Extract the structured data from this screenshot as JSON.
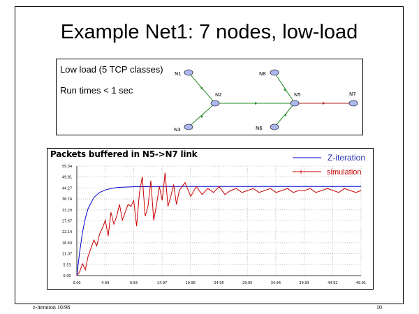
{
  "slide": {
    "title": "Example Net1: 7 nodes, low-load",
    "footer_left": "z-iteration 10/98",
    "page_number": "10"
  },
  "network": {
    "description_line1": "Low load (5 TCP classes)",
    "description_line2": "Run times < 1 sec",
    "nodes": [
      "N1",
      "N2",
      "N3",
      "N5",
      "N6",
      "N7",
      "N8"
    ]
  },
  "chart_data": {
    "type": "line",
    "title": "Packets buffered in N5->N7 link",
    "y_tick_labels": [
      "0.00",
      "5.53",
      "11.07",
      "16.60",
      "22.14",
      "27.67",
      "33.20",
      "38.74",
      "44.27",
      "49.81",
      "55.34"
    ],
    "x_tick_labels": [
      "0.00",
      "4.99",
      "9.93",
      "14.97",
      "19.96",
      "24.95",
      "29.95",
      "34.94",
      "39.93",
      "44.92",
      "49.91"
    ],
    "ylim": [
      0,
      55.34
    ],
    "xlim": [
      0,
      49.91
    ],
    "grid": true,
    "legend_position": "top-right",
    "series": [
      {
        "name": "Z-iteration",
        "color": "#0000cc",
        "x": [
          0,
          0.5,
          1,
          1.5,
          2,
          3,
          4,
          5,
          6,
          7,
          8,
          10,
          15,
          20,
          30,
          40,
          49.91
        ],
        "values": [
          0,
          12,
          22,
          29,
          34,
          39.5,
          42,
          43.3,
          44,
          44.5,
          44.7,
          44.9,
          45,
          45,
          45,
          45,
          45
        ]
      },
      {
        "name": "simulation",
        "color": "#cc0000",
        "x": [
          0,
          0.5,
          1,
          1.5,
          2,
          2.5,
          3,
          3.5,
          4,
          4.5,
          5,
          5.5,
          6,
          6.5,
          7,
          7.5,
          8,
          8.5,
          9,
          9.5,
          10,
          10.5,
          11,
          11.5,
          12,
          12.5,
          13,
          13.5,
          14,
          14.5,
          15,
          15.5,
          16,
          16.5,
          17,
          17.5,
          18,
          19,
          20,
          21,
          22,
          23,
          24,
          25,
          26,
          27,
          28,
          29,
          30,
          31,
          32,
          33,
          34,
          35,
          36,
          37,
          38,
          39,
          40,
          41,
          42,
          43,
          44,
          45,
          46,
          47,
          48,
          49,
          49.91
        ],
        "values": [
          0,
          2,
          6,
          3,
          10,
          14,
          18,
          15,
          21,
          24,
          28,
          20,
          32,
          26,
          30,
          36,
          28,
          32,
          36,
          35,
          38,
          25,
          42,
          50,
          30,
          35,
          48,
          28,
          36,
          45,
          38,
          52,
          35,
          40,
          46,
          36,
          43,
          47,
          40,
          45,
          41,
          44,
          42,
          45,
          41,
          43,
          44,
          42,
          43,
          44,
          42,
          43,
          44,
          42,
          43,
          44,
          42,
          43,
          43,
          44,
          42,
          43,
          44,
          43,
          42,
          44,
          43,
          42,
          43
        ]
      }
    ]
  }
}
